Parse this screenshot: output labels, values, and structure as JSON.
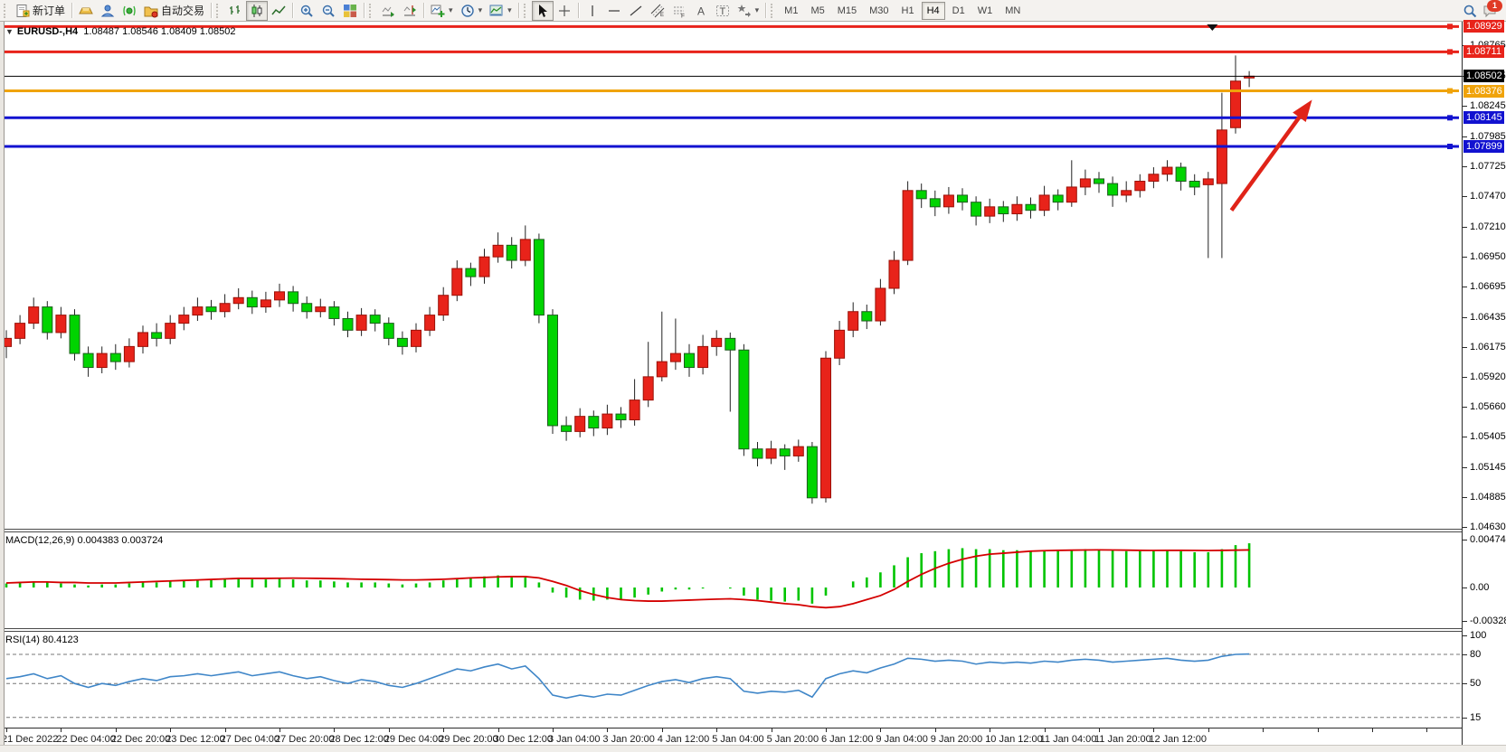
{
  "toolbar": {
    "new_order_label": "新订单",
    "auto_trading_label": "自动交易",
    "icons": [
      "new-order",
      "gold-ingot",
      "trader-profile",
      "signal",
      "auto-trading-folder",
      "bar-chart",
      "candlestick-chart",
      "line-chart",
      "zoom-in",
      "zoom-out",
      "tile-windows",
      "auto-scroll",
      "chart-shift",
      "new-chart",
      "periods-clock",
      "templates",
      "cursor",
      "crosshair",
      "vertical-line",
      "horizontal-line",
      "trendline",
      "equidistant-channel",
      "fibonacci",
      "text",
      "text-label",
      "shapes",
      "search",
      "chat"
    ],
    "timeframes": [
      "M1",
      "M5",
      "M15",
      "M30",
      "H1",
      "H4",
      "D1",
      "W1",
      "MN"
    ],
    "active_timeframe": "H4",
    "notification_count": "1"
  },
  "chart_data": {
    "type": "candlestick",
    "title": {
      "symbol": "EURUSD-,H4",
      "ohlc": "1.08487 1.08546 1.08409 1.08502"
    },
    "current_price": {
      "label": "1.08502",
      "value": 1.08502,
      "color": "#000000"
    },
    "hlines": [
      {
        "label": "1.08929",
        "price": 1.08929,
        "color": "#e8231a"
      },
      {
        "label": "1.08711",
        "price": 1.08711,
        "color": "#e8231a"
      },
      {
        "label": "1.08376",
        "price": 1.08376,
        "color": "#f0a30a"
      },
      {
        "label": "1.08145",
        "price": 1.08145,
        "color": "#1212d0"
      },
      {
        "label": "1.07899",
        "price": 1.07899,
        "color": "#1212d0"
      }
    ],
    "y_ticks": [
      "1.08765",
      "1.08505",
      "1.08245",
      "1.07985",
      "1.07725",
      "1.07470",
      "1.07210",
      "1.06950",
      "1.06695",
      "1.06435",
      "1.06175",
      "1.05920",
      "1.05660",
      "1.05405",
      "1.05145",
      "1.04885",
      "1.04630"
    ],
    "x_labels": [
      "21 Dec 2022",
      "22 Dec 04:00",
      "22 Dec 20:00",
      "23 Dec 12:00",
      "27 Dec 04:00",
      "27 Dec 20:00",
      "28 Dec 12:00",
      "29 Dec 04:00",
      "29 Dec 20:00",
      "30 Dec 12:00",
      "3 Jan 04:00",
      "3 Jan 20:00",
      "4 Jan 12:00",
      "5 Jan 04:00",
      "5 Jan 20:00",
      "6 Jan 12:00",
      "9 Jan 04:00",
      "9 Jan 20:00",
      "10 Jan 12:00",
      "11 Jan 04:00",
      "11 Jan 20:00",
      "12 Jan 12:00"
    ],
    "candles": [
      [
        1.0618,
        1.0632,
        1.0608,
        1.0625
      ],
      [
        1.0625,
        1.0645,
        1.062,
        1.0638
      ],
      [
        1.0638,
        1.066,
        1.0633,
        1.0652
      ],
      [
        1.0652,
        1.0657,
        1.0624,
        1.063
      ],
      [
        1.063,
        1.0652,
        1.0625,
        1.0645
      ],
      [
        1.0645,
        1.065,
        1.0606,
        1.0612
      ],
      [
        1.0612,
        1.0618,
        1.0592,
        1.06
      ],
      [
        1.06,
        1.0618,
        1.0595,
        1.0612
      ],
      [
        1.0612,
        1.062,
        1.0598,
        1.0605
      ],
      [
        1.0605,
        1.0625,
        1.06,
        1.0618
      ],
      [
        1.0618,
        1.0636,
        1.0612,
        1.063
      ],
      [
        1.063,
        1.0638,
        1.0618,
        1.0625
      ],
      [
        1.0625,
        1.0645,
        1.062,
        1.0638
      ],
      [
        1.0638,
        1.0652,
        1.0632,
        1.0645
      ],
      [
        1.0645,
        1.066,
        1.064,
        1.0652
      ],
      [
        1.0652,
        1.0658,
        1.0641,
        1.0648
      ],
      [
        1.0648,
        1.0663,
        1.0643,
        1.0655
      ],
      [
        1.0655,
        1.0668,
        1.065,
        1.066
      ],
      [
        1.066,
        1.0666,
        1.0646,
        1.0652
      ],
      [
        1.0652,
        1.0665,
        1.0647,
        1.0658
      ],
      [
        1.0658,
        1.0672,
        1.0652,
        1.0665
      ],
      [
        1.0665,
        1.067,
        1.0648,
        1.0655
      ],
      [
        1.0655,
        1.0661,
        1.0642,
        1.0648
      ],
      [
        1.0648,
        1.0659,
        1.0643,
        1.0652
      ],
      [
        1.0652,
        1.0657,
        1.0636,
        1.0642
      ],
      [
        1.0642,
        1.0648,
        1.0626,
        1.0632
      ],
      [
        1.0632,
        1.0651,
        1.0627,
        1.0645
      ],
      [
        1.0645,
        1.065,
        1.0631,
        1.0638
      ],
      [
        1.0638,
        1.0643,
        1.0619,
        1.0625
      ],
      [
        1.0625,
        1.0631,
        1.0611,
        1.0618
      ],
      [
        1.0618,
        1.0638,
        1.0613,
        1.0632
      ],
      [
        1.0632,
        1.0652,
        1.0627,
        1.0645
      ],
      [
        1.0645,
        1.0669,
        1.064,
        1.0662
      ],
      [
        1.0662,
        1.0692,
        1.0657,
        1.0685
      ],
      [
        1.0685,
        1.069,
        1.067,
        1.0678
      ],
      [
        1.0678,
        1.0702,
        1.0672,
        1.0695
      ],
      [
        1.0695,
        1.0716,
        1.069,
        1.0705
      ],
      [
        1.0705,
        1.0712,
        1.0685,
        1.0692
      ],
      [
        1.0692,
        1.0722,
        1.0687,
        1.071
      ],
      [
        1.071,
        1.0715,
        1.0638,
        1.0645
      ],
      [
        1.0645,
        1.065,
        1.0543,
        1.055
      ],
      [
        1.055,
        1.0558,
        1.0537,
        1.0545
      ],
      [
        1.0545,
        1.0565,
        1.054,
        1.0558
      ],
      [
        1.0558,
        1.0563,
        1.0541,
        1.0548
      ],
      [
        1.0548,
        1.0568,
        1.0542,
        1.056
      ],
      [
        1.056,
        1.0566,
        1.0548,
        1.0555
      ],
      [
        1.0555,
        1.059,
        1.055,
        1.0572
      ],
      [
        1.0572,
        1.0622,
        1.0566,
        1.0592
      ],
      [
        1.0592,
        1.0648,
        1.0588,
        1.0605
      ],
      [
        1.0605,
        1.0642,
        1.0598,
        1.0612
      ],
      [
        1.0612,
        1.062,
        1.0592,
        1.06
      ],
      [
        1.06,
        1.0628,
        1.0594,
        1.0618
      ],
      [
        1.0618,
        1.0632,
        1.061,
        1.0625
      ],
      [
        1.0625,
        1.063,
        1.0562,
        1.0615
      ],
      [
        1.0615,
        1.062,
        1.0524,
        1.053
      ],
      [
        1.053,
        1.0536,
        1.0515,
        1.0522
      ],
      [
        1.0522,
        1.0537,
        1.0517,
        1.053
      ],
      [
        1.053,
        1.0534,
        1.0512,
        1.0524
      ],
      [
        1.0524,
        1.0538,
        1.0519,
        1.0532
      ],
      [
        1.0532,
        1.0536,
        1.0483,
        1.0488
      ],
      [
        1.0488,
        1.0614,
        1.0484,
        1.0608
      ],
      [
        1.0608,
        1.064,
        1.0602,
        1.0632
      ],
      [
        1.0632,
        1.0656,
        1.0626,
        1.0648
      ],
      [
        1.0648,
        1.0654,
        1.0633,
        1.064
      ],
      [
        1.064,
        1.0676,
        1.0636,
        1.0668
      ],
      [
        1.0668,
        1.07,
        1.0663,
        1.0692
      ],
      [
        1.0692,
        1.076,
        1.0688,
        1.0752
      ],
      [
        1.0752,
        1.0758,
        1.0737,
        1.0745
      ],
      [
        1.0745,
        1.0752,
        1.073,
        1.0738
      ],
      [
        1.0738,
        1.0755,
        1.0732,
        1.0748
      ],
      [
        1.0748,
        1.0754,
        1.0735,
        1.0742
      ],
      [
        1.0742,
        1.0747,
        1.0722,
        1.073
      ],
      [
        1.073,
        1.0745,
        1.0724,
        1.0738
      ],
      [
        1.0738,
        1.0743,
        1.0725,
        1.0732
      ],
      [
        1.0732,
        1.0747,
        1.0726,
        1.074
      ],
      [
        1.074,
        1.0746,
        1.0728,
        1.0735
      ],
      [
        1.0735,
        1.0756,
        1.073,
        1.0748
      ],
      [
        1.0748,
        1.0753,
        1.0735,
        1.0742
      ],
      [
        1.0742,
        1.0778,
        1.0738,
        1.0755
      ],
      [
        1.0755,
        1.077,
        1.0748,
        1.0762
      ],
      [
        1.0762,
        1.0768,
        1.075,
        1.0758
      ],
      [
        1.0758,
        1.0764,
        1.0738,
        1.0748
      ],
      [
        1.0748,
        1.076,
        1.0742,
        1.0752
      ],
      [
        1.0752,
        1.0766,
        1.0746,
        1.076
      ],
      [
        1.076,
        1.0772,
        1.0754,
        1.0766
      ],
      [
        1.0766,
        1.0778,
        1.076,
        1.0772
      ],
      [
        1.0772,
        1.0776,
        1.0752,
        1.076
      ],
      [
        1.076,
        1.0766,
        1.0748,
        1.0755
      ],
      [
        1.0757,
        1.0768,
        1.0694,
        1.0762
      ],
      [
        1.0758,
        1.0836,
        1.0694,
        1.0804
      ],
      [
        1.0806,
        1.0868,
        1.0801,
        1.0846
      ],
      [
        1.08487,
        1.08546,
        1.08409,
        1.08502
      ]
    ],
    "colors": {
      "up": "#e8231a",
      "down": "#00d400",
      "up_stroke": "#9b1007",
      "down_stroke": "#1e5c1e",
      "wick": "#222222",
      "macd_hist": "#00c400",
      "macd_signal": "#d40000",
      "rsi": "#3f86c8"
    },
    "indicators": {
      "macd": {
        "label": "MACD(12,26,9)",
        "values": "0.004383 0.003724",
        "axis_ticks": [
          "0.004748",
          "0.00",
          "-0.003286"
        ],
        "hist": [
          0.0004,
          0.0005,
          0.0006,
          0.0005,
          0.0004,
          0.0003,
          0.0002,
          0.0003,
          0.0003,
          0.0004,
          0.0005,
          0.0005,
          0.0006,
          0.0007,
          0.0008,
          0.0008,
          0.0009,
          0.0009,
          0.0008,
          0.0008,
          0.0009,
          0.0008,
          0.0007,
          0.0007,
          0.0006,
          0.0005,
          0.0005,
          0.0005,
          0.0004,
          0.0003,
          0.0004,
          0.0005,
          0.0007,
          0.0009,
          0.001,
          0.0011,
          0.0012,
          0.001,
          0.001,
          0.0005,
          -0.0005,
          -0.001,
          -0.0012,
          -0.0013,
          -0.0012,
          -0.0012,
          -0.001,
          -0.0007,
          -0.0004,
          -0.0002,
          -0.0002,
          -0.0001,
          0.0,
          -0.0001,
          -0.0008,
          -0.0012,
          -0.0013,
          -0.0014,
          -0.0013,
          -0.0016,
          -0.0008,
          0.0,
          0.0006,
          0.001,
          0.0015,
          0.0022,
          0.003,
          0.0034,
          0.0036,
          0.0038,
          0.0039,
          0.0038,
          0.0038,
          0.0037,
          0.0037,
          0.0036,
          0.0037,
          0.0036,
          0.0037,
          0.0038,
          0.0038,
          0.0037,
          0.0036,
          0.0036,
          0.0037,
          0.0037,
          0.0036,
          0.0035,
          0.0035,
          0.0038,
          0.0042,
          0.004383
        ],
        "signal": [
          0.00045,
          0.0005,
          0.00055,
          0.00055,
          0.0005,
          0.0005,
          0.00045,
          0.00045,
          0.00045,
          0.0005,
          0.00055,
          0.0006,
          0.00065,
          0.0007,
          0.00075,
          0.0008,
          0.00085,
          0.0009,
          0.0009,
          0.0009,
          0.00092,
          0.00093,
          0.00092,
          0.0009,
          0.00088,
          0.00085,
          0.00082,
          0.0008,
          0.00078,
          0.00075,
          0.00075,
          0.00078,
          0.00082,
          0.00088,
          0.00095,
          0.001,
          0.00105,
          0.00108,
          0.00108,
          0.00095,
          0.0006,
          0.0002,
          -0.0003,
          -0.0007,
          -0.001,
          -0.0012,
          -0.0013,
          -0.00135,
          -0.00135,
          -0.0013,
          -0.00125,
          -0.0012,
          -0.00115,
          -0.00112,
          -0.0012,
          -0.0013,
          -0.00145,
          -0.0016,
          -0.0017,
          -0.0019,
          -0.002,
          -0.0019,
          -0.0016,
          -0.0012,
          -0.0008,
          -0.0002,
          0.0006,
          0.0013,
          0.0019,
          0.0024,
          0.0028,
          0.0031,
          0.0033,
          0.0034,
          0.0035,
          0.0036,
          0.00365,
          0.00368,
          0.0037,
          0.00372,
          0.00373,
          0.00372,
          0.0037,
          0.00368,
          0.00367,
          0.00368,
          0.00368,
          0.00367,
          0.00366,
          0.00368,
          0.0037,
          0.003724
        ]
      },
      "rsi": {
        "label": "RSI(14)",
        "value": "80.4123",
        "axis_ticks": [
          100,
          80,
          50,
          15
        ],
        "dashed_levels": [
          80,
          50,
          15
        ],
        "series": [
          55,
          57,
          60,
          55,
          58,
          50,
          46,
          50,
          48,
          52,
          55,
          53,
          57,
          58,
          60,
          58,
          60,
          62,
          58,
          60,
          62,
          58,
          55,
          57,
          53,
          50,
          54,
          52,
          48,
          46,
          50,
          55,
          60,
          65,
          63,
          67,
          70,
          65,
          68,
          55,
          38,
          35,
          38,
          36,
          39,
          38,
          43,
          48,
          52,
          54,
          51,
          55,
          57,
          55,
          42,
          40,
          42,
          41,
          43,
          36,
          55,
          60,
          63,
          61,
          66,
          70,
          76,
          75,
          73,
          74,
          73,
          70,
          72,
          71,
          72,
          71,
          73,
          72,
          74,
          75,
          74,
          72,
          73,
          74,
          75,
          76,
          74,
          73,
          74,
          78,
          80,
          80.41
        ]
      }
    },
    "trend_arrow": {
      "from": {
        "bar": 89.7,
        "price": 1.0735
      },
      "to": {
        "bar": 95.6,
        "price": 1.083
      },
      "color": "#e02318"
    },
    "top_marker": {
      "symbol": "▼",
      "bar": 88.3
    }
  }
}
